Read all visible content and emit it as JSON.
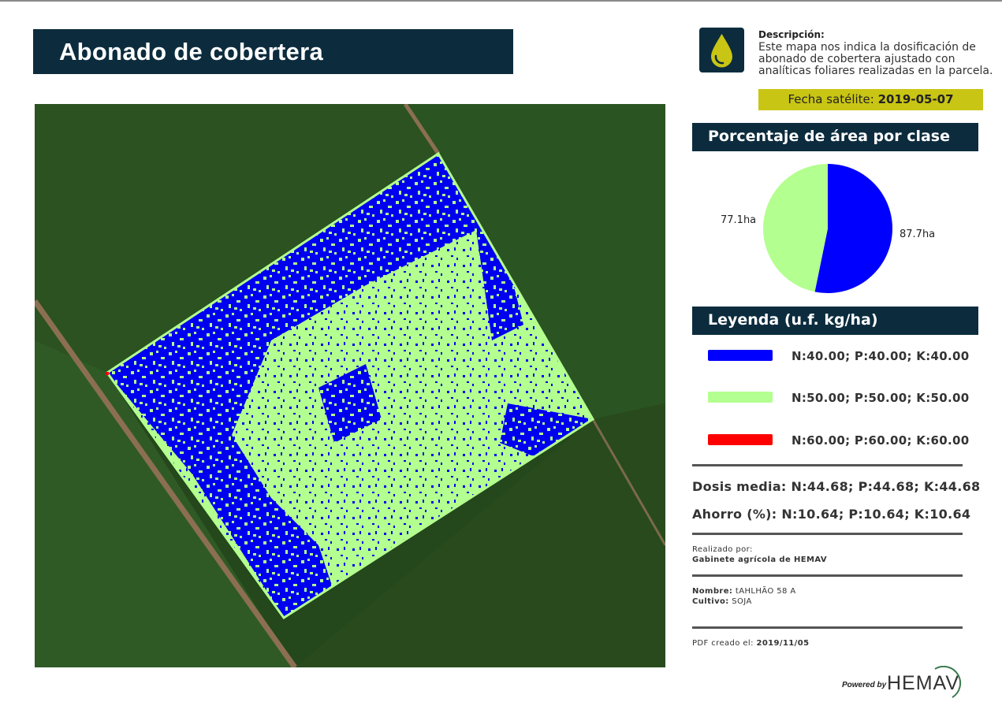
{
  "header": {
    "title": "Abonado de cobertera"
  },
  "description": {
    "label": "Descripción:",
    "text": "Este mapa nos indica la dosificación de abonado de cobertera ajustado con analíticas foliares realizadas en la parcela.",
    "icon": "drop-icon"
  },
  "satellite": {
    "label": "Fecha satélite: ",
    "date": "2019-05-07"
  },
  "area_section": {
    "title": "Porcentaje de área por clase"
  },
  "chart_data": {
    "type": "pie",
    "slices": [
      {
        "label": "87.7ha",
        "value": 87.7,
        "color": "#0000ff"
      },
      {
        "label": "77.1ha",
        "value": 77.1,
        "color": "#b3ff8f"
      }
    ]
  },
  "legend_section": {
    "title": "Leyenda (u.f. kg/ha)"
  },
  "legend": [
    {
      "label": "N:40.00; P:40.00; K:40.00",
      "color": "#0000ff"
    },
    {
      "label": "N:50.00; P:50.00; K:50.00",
      "color": "#b3ff8f"
    },
    {
      "label": "N:60.00; P:60.00; K:60.00",
      "color": "#ff0000"
    }
  ],
  "stats": {
    "dosis": "Dosis media: N:44.68; P:44.68; K:44.68",
    "ahorro": "Ahorro (%): N:10.64; P:10.64; K:10.64"
  },
  "credits": {
    "label": "Realizado por:",
    "value": "Gabinete agrícola de HEMAV"
  },
  "parcel": {
    "name_label": "Nombre:",
    "name_value": " tAHLHÃO 58 A",
    "crop_label": "Cultivo:",
    "crop_value": " SOJA"
  },
  "pdf": {
    "label": "PDF creado el: ",
    "date": "2019/11/05"
  },
  "logo": {
    "powered": "Powered by",
    "brand": "HEMAV"
  },
  "colors": {
    "navy": "#0c2c3e",
    "accent": "#c9c514",
    "blue": "#0000ff",
    "green": "#b3ff8f",
    "red": "#ff0000"
  }
}
